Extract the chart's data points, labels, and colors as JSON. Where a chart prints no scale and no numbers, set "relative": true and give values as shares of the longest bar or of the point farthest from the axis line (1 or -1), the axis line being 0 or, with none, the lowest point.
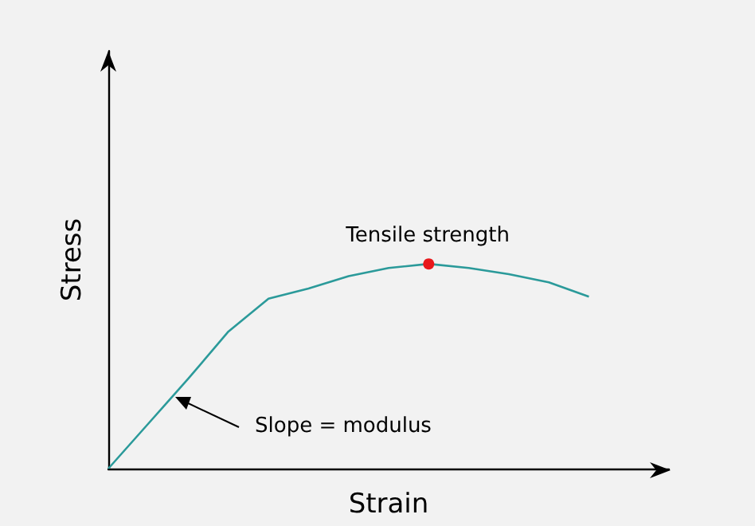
{
  "chart_data": {
    "type": "line",
    "relative": true,
    "xlabel": "Strain",
    "ylabel": "Stress",
    "categories": [
      null,
      null,
      null,
      null,
      null,
      null,
      null,
      null,
      null,
      null,
      null,
      null,
      null
    ],
    "series": [
      {
        "color": "#2b9a9a",
        "values": [
          0,
          0.22,
          0.44,
          0.67,
          0.83,
          0.88,
          0.94,
          0.98,
          1,
          0.98,
          0.95,
          0.91,
          0.84
        ]
      }
    ],
    "annotations": [
      {
        "text": "Tensile strength",
        "y": 1
      },
      "Slope = modulus"
    ],
    "marker": "none",
    "grid": false
  }
}
